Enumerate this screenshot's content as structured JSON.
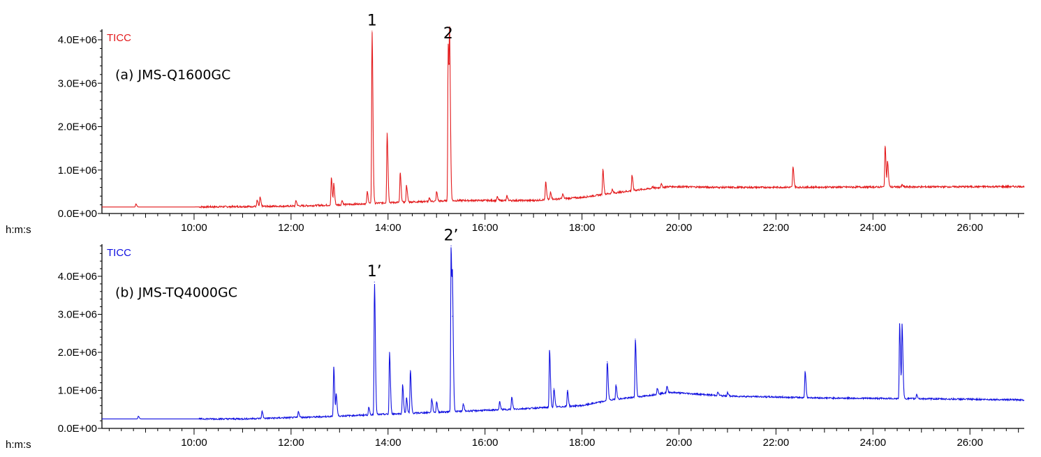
{
  "chart_data": [
    {
      "type": "line",
      "title": "(a) JMS-Q1600GC",
      "trace_label": "TICC",
      "color": "#e31a1c",
      "xlabel": "h:m:s",
      "x_unit": "minutes",
      "xlim": [
        8.1,
        27.12
      ],
      "ylim": [
        0,
        4250000.0
      ],
      "xticks": [
        {
          "v": 10,
          "label": "10:00"
        },
        {
          "v": 12,
          "label": "12:00"
        },
        {
          "v": 14,
          "label": "14:00"
        },
        {
          "v": 16,
          "label": "16:00"
        },
        {
          "v": 18,
          "label": "18:00"
        },
        {
          "v": 20,
          "label": "20:00"
        },
        {
          "v": 22,
          "label": "22:00"
        },
        {
          "v": 24,
          "label": "24:00"
        },
        {
          "v": 26,
          "label": "26:00"
        }
      ],
      "yticks": [
        {
          "v": 0,
          "label": "0.0E+00"
        },
        {
          "v": 1000000.0,
          "label": "1.0E+06"
        },
        {
          "v": 2000000.0,
          "label": "2.0E+06"
        },
        {
          "v": 3000000.0,
          "label": "3.0E+06"
        },
        {
          "v": 4000000.0,
          "label": "4.0E+06"
        }
      ],
      "baseline": [
        [
          8.1,
          150000.0
        ],
        [
          10,
          150000.0
        ],
        [
          12,
          170000.0
        ],
        [
          13,
          200000.0
        ],
        [
          14,
          250000.0
        ],
        [
          15.5,
          300000.0
        ],
        [
          17,
          300000.0
        ],
        [
          18,
          370000.0
        ],
        [
          18.5,
          450000.0
        ],
        [
          19.2,
          550000.0
        ],
        [
          19.8,
          620000.0
        ],
        [
          21,
          600000.0
        ],
        [
          27.12,
          620000.0
        ]
      ],
      "peaks": [
        [
          8.8,
          220000.0
        ],
        [
          11.3,
          300000.0
        ],
        [
          11.36,
          370000.0
        ],
        [
          12.1,
          300000.0
        ],
        [
          12.83,
          820000.0
        ],
        [
          12.88,
          680000.0
        ],
        [
          13.05,
          300000.0
        ],
        [
          13.57,
          500000.0
        ],
        [
          13.67,
          4200000.0
        ],
        [
          13.98,
          1850000.0
        ],
        [
          14.25,
          930000.0
        ],
        [
          14.38,
          650000.0
        ],
        [
          14.85,
          350000.0
        ],
        [
          15.0,
          500000.0
        ],
        [
          15.24,
          3900000.0
        ],
        [
          15.27,
          3450000.0
        ],
        [
          16.25,
          380000.0
        ],
        [
          16.45,
          400000.0
        ],
        [
          17.25,
          720000.0
        ],
        [
          17.35,
          500000.0
        ],
        [
          17.6,
          450000.0
        ],
        [
          18.43,
          1020000.0
        ],
        [
          18.62,
          550000.0
        ],
        [
          19.03,
          880000.0
        ],
        [
          19.45,
          620000.0
        ],
        [
          19.63,
          680000.0
        ],
        [
          22.35,
          1070000.0
        ],
        [
          24.25,
          1550000.0
        ],
        [
          24.3,
          1200000.0
        ],
        [
          24.6,
          660000.0
        ]
      ],
      "annotations": [
        {
          "label": "1",
          "x": 13.67,
          "y": 4200000.0
        },
        {
          "label": "2",
          "x": 15.24,
          "y": 3900000.0
        }
      ]
    },
    {
      "type": "line",
      "title": "(b) JMS-TQ4000GC",
      "trace_label": "TICC",
      "color": "#1010e0",
      "xlabel": "h:m:s",
      "x_unit": "minutes",
      "xlim": [
        8.1,
        27.12
      ],
      "ylim": [
        0,
        4800000.0
      ],
      "xticks": [
        {
          "v": 10,
          "label": "10:00"
        },
        {
          "v": 12,
          "label": "12:00"
        },
        {
          "v": 14,
          "label": "14:00"
        },
        {
          "v": 16,
          "label": "16:00"
        },
        {
          "v": 18,
          "label": "18:00"
        },
        {
          "v": 20,
          "label": "20:00"
        },
        {
          "v": 22,
          "label": "22:00"
        },
        {
          "v": 24,
          "label": "24:00"
        },
        {
          "v": 26,
          "label": "26:00"
        }
      ],
      "yticks": [
        {
          "v": 0,
          "label": "0.0E+00"
        },
        {
          "v": 1000000.0,
          "label": "1.0E+06"
        },
        {
          "v": 2000000.0,
          "label": "2.0E+06"
        },
        {
          "v": 3000000.0,
          "label": "3.0E+06"
        },
        {
          "v": 4000000.0,
          "label": "4.0E+06"
        }
      ],
      "baseline": [
        [
          8.1,
          250000.0
        ],
        [
          11,
          250000.0
        ],
        [
          12.5,
          300000.0
        ],
        [
          14.5,
          400000.0
        ],
        [
          16.5,
          500000.0
        ],
        [
          18,
          600000.0
        ],
        [
          18.6,
          750000.0
        ],
        [
          19.3,
          850000.0
        ],
        [
          19.8,
          950000.0
        ],
        [
          21,
          850000.0
        ],
        [
          23,
          800000.0
        ],
        [
          25,
          780000.0
        ],
        [
          27.12,
          750000.0
        ]
      ],
      "peaks": [
        [
          8.85,
          320000.0
        ],
        [
          11.4,
          450000.0
        ],
        [
          12.15,
          450000.0
        ],
        [
          12.88,
          1600000.0
        ],
        [
          12.93,
          900000.0
        ],
        [
          13.6,
          550000.0
        ],
        [
          13.72,
          3850000.0
        ],
        [
          14.03,
          2000000.0
        ],
        [
          14.3,
          1150000.0
        ],
        [
          14.38,
          800000.0
        ],
        [
          14.46,
          1520000.0
        ],
        [
          14.9,
          780000.0
        ],
        [
          15.0,
          700000.0
        ],
        [
          15.3,
          4800000.0
        ],
        [
          15.33,
          2950000.0
        ],
        [
          15.55,
          650000.0
        ],
        [
          16.3,
          700000.0
        ],
        [
          16.55,
          820000.0
        ],
        [
          17.33,
          2050000.0
        ],
        [
          17.42,
          1050000.0
        ],
        [
          17.7,
          1000000.0
        ],
        [
          18.52,
          1750000.0
        ],
        [
          18.7,
          1150000.0
        ],
        [
          19.1,
          2350000.0
        ],
        [
          19.55,
          1050000.0
        ],
        [
          19.75,
          1100000.0
        ],
        [
          20.8,
          950000.0
        ],
        [
          21.0,
          950000.0
        ],
        [
          22.6,
          1500000.0
        ],
        [
          24.55,
          2750000.0
        ],
        [
          24.6,
          2700000.0
        ],
        [
          24.9,
          900000.0
        ]
      ],
      "annotations": [
        {
          "label": "1’",
          "x": 13.72,
          "y": 3850000.0
        },
        {
          "label": "2’",
          "x": 15.3,
          "y": 4800000.0
        }
      ]
    }
  ]
}
